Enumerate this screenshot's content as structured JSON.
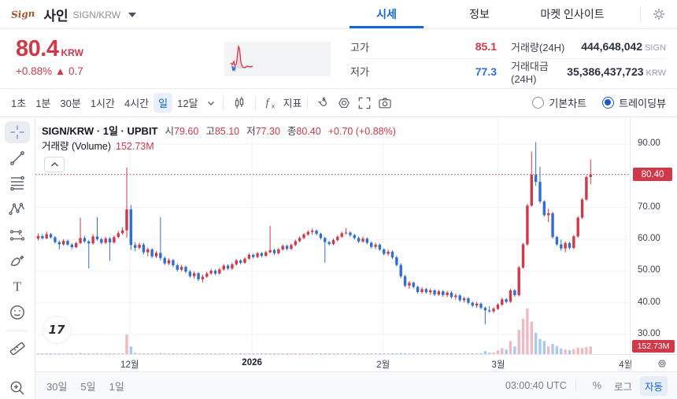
{
  "header": {
    "logo_text": "Sign",
    "coin_name": "사인",
    "pair": "SIGN/KRW",
    "tabs": [
      {
        "label": "시세"
      },
      {
        "label": "정보"
      },
      {
        "label": "마켓 인사이트"
      }
    ]
  },
  "price_summary": {
    "price": "80.4",
    "currency": "KRW",
    "change": "+0.88% ▲ 0.7",
    "stats": [
      {
        "label": "고가",
        "value": "85.1"
      },
      {
        "label": "저가",
        "value": "77.3"
      },
      {
        "label": "거래량(24H)",
        "value": "444,648,042",
        "unit": "SIGN"
      },
      {
        "label": "거래대금(24H)",
        "value": "35,386,437,723",
        "unit": "KRW"
      }
    ]
  },
  "toolbar": {
    "intervals": [
      {
        "label": "1초"
      },
      {
        "label": "1분"
      },
      {
        "label": "30분"
      },
      {
        "label": "1시간"
      },
      {
        "label": "4시간"
      },
      {
        "label": "일"
      },
      {
        "label": "12달"
      }
    ],
    "active_interval": "일",
    "indicator_label": "지표",
    "chart_modes": [
      {
        "label": "기본차트",
        "selected": false
      },
      {
        "label": "트레이딩뷰",
        "selected": true
      }
    ]
  },
  "legend": {
    "title": "SIGN/KRW · 1일 · UPBIT",
    "ohlc": [
      {
        "k": "시",
        "v": "79.60"
      },
      {
        "k": "고",
        "v": "85.10"
      },
      {
        "k": "저",
        "v": "77.30"
      },
      {
        "k": "종",
        "v": "80.40"
      }
    ],
    "change": "+0.70 (+0.88%)",
    "volume_label": "거래량 (Volume)",
    "volume_value": "152.73M"
  },
  "watermark": "17",
  "chart_data": {
    "type": "candlestick_with_volume",
    "source": "UPBIT",
    "interval": "1일",
    "current_price": 80.4,
    "price_badge": "80.40",
    "volume_badge": "152.73M",
    "y_axis": {
      "ticks": [
        90,
        70,
        60,
        50,
        40,
        30
      ],
      "grid": [
        90,
        80,
        70,
        60,
        50,
        40,
        30
      ],
      "range": [
        28,
        93
      ]
    },
    "x_ticks": [
      {
        "label": "12월",
        "i": 21.7
      },
      {
        "label": "2026",
        "i": 50.7,
        "bold": true
      },
      {
        "label": "2월",
        "i": 81.8
      },
      {
        "label": "3월",
        "i": 109.1
      },
      {
        "label": "4월",
        "i": 139.3
      }
    ],
    "volume_max_m": 900,
    "candles_format": [
      "open",
      "high",
      "low",
      "close",
      "volume_m"
    ],
    "candles": [
      [
        60.2,
        61.8,
        59.6,
        61.0,
        14
      ],
      [
        61.0,
        61.6,
        59.9,
        60.3,
        10
      ],
      [
        60.3,
        62.4,
        60.0,
        61.6,
        12
      ],
      [
        61.6,
        62.0,
        60.2,
        60.6,
        9
      ],
      [
        60.6,
        61.0,
        58.6,
        59.1,
        12
      ],
      [
        59.1,
        59.6,
        56.8,
        58.4,
        14
      ],
      [
        58.4,
        60.0,
        58.0,
        59.5,
        10
      ],
      [
        59.5,
        59.9,
        57.9,
        58.3,
        9
      ],
      [
        58.3,
        58.8,
        56.9,
        57.5,
        11
      ],
      [
        57.5,
        59.2,
        57.2,
        58.8,
        10
      ],
      [
        58.8,
        66.8,
        58.4,
        60.4,
        24
      ],
      [
        60.4,
        61.0,
        58.9,
        59.3,
        12
      ],
      [
        59.3,
        59.8,
        50.8,
        58.7,
        18
      ],
      [
        58.7,
        61.6,
        58.3,
        60.9,
        11
      ],
      [
        60.9,
        67.0,
        59.5,
        60.0,
        20
      ],
      [
        60.0,
        60.6,
        58.4,
        58.9,
        9
      ],
      [
        58.9,
        60.8,
        58.5,
        60.2,
        10
      ],
      [
        60.2,
        60.7,
        53.2,
        59.0,
        16
      ],
      [
        59.0,
        61.2,
        58.6,
        60.7,
        11
      ],
      [
        60.7,
        62.6,
        60.3,
        61.9,
        13
      ],
      [
        61.9,
        63.8,
        61.4,
        62.8,
        15
      ],
      [
        62.8,
        82.6,
        60.5,
        69.4,
        390
      ],
      [
        69.4,
        70.8,
        56.6,
        58.2,
        150
      ],
      [
        58.2,
        59.0,
        56.2,
        57.3,
        26
      ],
      [
        57.3,
        58.9,
        56.8,
        58.3,
        14
      ],
      [
        58.3,
        58.8,
        55.3,
        55.9,
        16
      ],
      [
        55.9,
        57.4,
        54.6,
        56.8,
        12
      ],
      [
        56.8,
        57.2,
        54.0,
        54.6,
        13
      ],
      [
        54.6,
        56.3,
        54.1,
        55.7,
        10
      ],
      [
        55.7,
        66.9,
        53.3,
        54.1,
        22
      ],
      [
        54.1,
        54.6,
        51.9,
        52.4,
        17
      ],
      [
        52.4,
        54.0,
        51.8,
        53.4,
        10
      ],
      [
        53.4,
        53.8,
        51.2,
        51.8,
        11
      ],
      [
        51.8,
        52.3,
        49.8,
        50.4,
        13
      ],
      [
        50.4,
        51.9,
        49.9,
        51.3,
        9
      ],
      [
        51.3,
        51.7,
        49.3,
        49.8,
        11
      ],
      [
        49.8,
        50.3,
        47.9,
        48.4,
        12
      ],
      [
        48.4,
        49.9,
        47.6,
        49.3,
        10
      ],
      [
        49.3,
        49.7,
        46.9,
        47.4,
        13
      ],
      [
        47.4,
        48.9,
        46.4,
        48.2,
        11
      ],
      [
        48.2,
        49.8,
        47.8,
        49.2,
        10
      ],
      [
        49.2,
        50.7,
        48.8,
        50.1,
        9
      ],
      [
        50.1,
        50.5,
        48.7,
        49.2,
        8
      ],
      [
        49.2,
        51.0,
        48.9,
        50.5,
        10
      ],
      [
        50.5,
        52.2,
        50.1,
        51.7,
        11
      ],
      [
        51.7,
        52.1,
        50.3,
        50.8,
        8
      ],
      [
        50.8,
        52.6,
        50.4,
        52.1,
        10
      ],
      [
        52.1,
        53.8,
        51.7,
        53.3,
        12
      ],
      [
        53.3,
        53.7,
        52.1,
        52.6,
        8
      ],
      [
        52.6,
        54.4,
        52.3,
        53.9,
        10
      ],
      [
        53.9,
        55.6,
        53.5,
        55.1,
        11
      ],
      [
        55.1,
        55.5,
        53.9,
        54.4,
        8
      ],
      [
        54.4,
        56.1,
        54.0,
        55.6,
        10
      ],
      [
        55.6,
        56.0,
        54.3,
        54.8,
        7
      ],
      [
        54.8,
        56.4,
        54.4,
        55.9,
        9
      ],
      [
        55.9,
        64.2,
        55.5,
        56.6,
        18
      ],
      [
        56.6,
        57.0,
        55.1,
        55.6,
        8
      ],
      [
        55.6,
        57.3,
        55.2,
        56.8,
        10
      ],
      [
        56.8,
        58.4,
        56.4,
        57.9,
        11
      ],
      [
        57.9,
        58.3,
        56.5,
        57.0,
        8
      ],
      [
        57.0,
        58.7,
        56.6,
        58.2,
        10
      ],
      [
        58.2,
        59.9,
        57.8,
        59.4,
        12
      ],
      [
        59.4,
        60.9,
        59.0,
        60.4,
        13
      ],
      [
        60.4,
        62.0,
        60.0,
        61.5,
        14
      ],
      [
        61.5,
        62.8,
        61.1,
        62.3,
        13
      ],
      [
        62.3,
        63.4,
        61.4,
        62.7,
        12
      ],
      [
        62.7,
        63.1,
        61.2,
        61.7,
        10
      ],
      [
        61.7,
        62.1,
        59.9,
        60.4,
        11
      ],
      [
        60.4,
        60.8,
        52.6,
        59.1,
        13
      ],
      [
        59.1,
        59.5,
        58.0,
        58.5,
        8
      ],
      [
        58.5,
        60.2,
        58.1,
        59.7,
        9
      ],
      [
        59.7,
        61.3,
        59.3,
        60.8,
        10
      ],
      [
        60.8,
        62.4,
        60.4,
        61.9,
        11
      ],
      [
        61.9,
        63.5,
        61.5,
        62.1,
        12
      ],
      [
        62.1,
        62.5,
        60.8,
        61.3,
        9
      ],
      [
        61.3,
        61.7,
        59.9,
        60.4,
        8
      ],
      [
        60.4,
        60.9,
        58.8,
        59.3,
        10
      ],
      [
        59.3,
        60.8,
        58.9,
        60.2,
        8
      ],
      [
        60.2,
        60.6,
        58.4,
        58.9,
        9
      ],
      [
        58.9,
        59.4,
        57.1,
        57.6,
        10
      ],
      [
        57.6,
        58.9,
        56.9,
        58.3,
        8
      ],
      [
        58.3,
        58.7,
        56.3,
        56.8,
        10
      ],
      [
        56.8,
        57.2,
        54.9,
        55.4,
        12
      ],
      [
        55.4,
        56.7,
        54.8,
        56.1,
        9
      ],
      [
        56.1,
        56.5,
        53.8,
        54.3,
        11
      ],
      [
        54.3,
        54.8,
        51.4,
        51.9,
        17
      ],
      [
        51.9,
        52.4,
        47.8,
        48.3,
        22
      ],
      [
        48.3,
        48.8,
        44.9,
        45.4,
        20
      ],
      [
        45.4,
        46.9,
        44.4,
        46.3,
        12
      ],
      [
        46.3,
        46.7,
        44.5,
        45.0,
        9
      ],
      [
        45.0,
        45.4,
        42.9,
        43.4,
        11
      ],
      [
        43.4,
        44.9,
        42.9,
        44.3,
        8
      ],
      [
        44.3,
        44.7,
        42.8,
        43.3,
        7
      ],
      [
        43.3,
        44.5,
        42.5,
        43.9,
        8
      ],
      [
        43.9,
        44.3,
        42.1,
        42.6,
        7
      ],
      [
        42.6,
        44.1,
        42.2,
        43.6,
        8
      ],
      [
        43.6,
        44.0,
        41.9,
        42.4,
        7
      ],
      [
        42.4,
        43.7,
        41.8,
        43.2,
        6
      ],
      [
        43.2,
        43.6,
        41.3,
        41.8,
        8
      ],
      [
        41.8,
        42.9,
        41.0,
        42.3,
        6
      ],
      [
        42.3,
        42.7,
        40.3,
        40.8,
        9
      ],
      [
        40.8,
        41.9,
        40.1,
        41.4,
        7
      ],
      [
        41.4,
        41.8,
        39.5,
        40.0,
        8
      ],
      [
        40.0,
        40.4,
        38.6,
        39.1,
        9
      ],
      [
        39.1,
        40.3,
        38.4,
        39.7,
        7
      ],
      [
        39.7,
        40.1,
        37.9,
        38.4,
        8
      ],
      [
        38.4,
        38.8,
        33.2,
        37.6,
        60
      ],
      [
        37.6,
        38.9,
        36.9,
        37.3,
        28
      ],
      [
        37.3,
        38.6,
        36.8,
        38.1,
        36
      ],
      [
        38.1,
        39.9,
        37.7,
        39.4,
        70
      ],
      [
        39.4,
        41.6,
        39.0,
        41.1,
        120
      ],
      [
        41.1,
        41.5,
        39.8,
        40.3,
        90
      ],
      [
        40.3,
        44.4,
        40.0,
        43.9,
        260
      ],
      [
        43.9,
        44.3,
        41.9,
        42.4,
        150
      ],
      [
        42.4,
        51.6,
        42.0,
        51.1,
        480
      ],
      [
        51.1,
        58.9,
        50.7,
        58.4,
        700
      ],
      [
        58.4,
        71.2,
        57.9,
        70.6,
        900
      ],
      [
        70.6,
        87.6,
        70.2,
        80.3,
        640
      ],
      [
        80.3,
        90.6,
        76.8,
        78.1,
        420
      ],
      [
        78.1,
        82.9,
        71.3,
        71.9,
        300
      ],
      [
        71.9,
        72.3,
        67.1,
        67.6,
        260
      ],
      [
        67.6,
        69.6,
        65.4,
        68.2,
        150
      ],
      [
        68.2,
        68.6,
        60.2,
        60.7,
        200
      ],
      [
        60.7,
        61.1,
        57.9,
        58.4,
        160
      ],
      [
        58.4,
        59.9,
        56.4,
        57.1,
        110
      ],
      [
        57.1,
        59.4,
        55.9,
        58.8,
        90
      ],
      [
        58.8,
        59.2,
        56.8,
        57.3,
        80
      ],
      [
        57.3,
        61.4,
        56.9,
        60.9,
        100
      ],
      [
        60.9,
        67.3,
        60.5,
        66.8,
        130
      ],
      [
        66.8,
        73.0,
        66.4,
        72.5,
        120
      ],
      [
        72.5,
        80.1,
        72.1,
        79.6,
        140
      ],
      [
        79.6,
        85.1,
        77.3,
        80.4,
        152.73
      ]
    ]
  },
  "sparkline": {
    "red_points": [
      [
        8,
        27
      ],
      [
        10,
        29
      ],
      [
        12,
        25
      ],
      [
        13,
        30
      ],
      [
        15,
        29
      ],
      [
        16,
        23
      ],
      [
        17,
        13
      ],
      [
        18,
        6
      ],
      [
        19,
        8
      ],
      [
        20,
        16
      ],
      [
        21,
        26
      ],
      [
        23,
        32
      ],
      [
        26,
        33
      ],
      [
        29,
        31
      ],
      [
        33,
        32
      ],
      [
        36,
        31
      ]
    ],
    "blue_points": [
      [
        10,
        31
      ],
      [
        11,
        37
      ],
      [
        12,
        33
      ],
      [
        13,
        36
      ],
      [
        14,
        31
      ]
    ]
  },
  "bottom_bar": {
    "ranges": [
      "30일",
      "5일",
      "1일"
    ],
    "clock": "03:00:40 UTC",
    "scale_buttons": [
      {
        "label": "%",
        "active": false
      },
      {
        "label": "로그",
        "active": false
      },
      {
        "label": "자동",
        "active": true
      }
    ]
  },
  "colors": {
    "up": "#d03949",
    "down": "#2f6ed5",
    "volume_up": "#efb9c0",
    "volume_down": "#abc8ee",
    "accent": "#1366d6",
    "grid": "#f0f2f5",
    "current_line": "#d03949"
  }
}
